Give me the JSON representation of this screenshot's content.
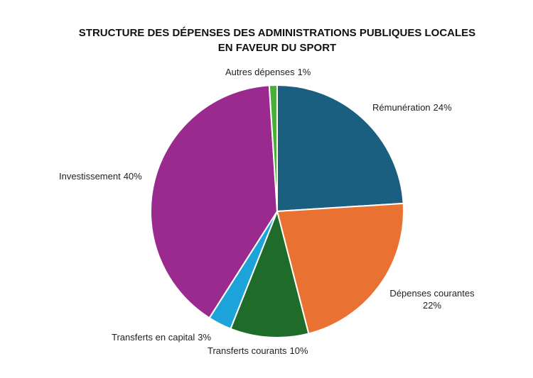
{
  "chart_data": {
    "type": "pie",
    "title": [
      "STRUCTURE DES DÉPENSES DES ADMINISTRATIONS PUBLIQUES LOCALES",
      "EN FAVEUR DU SPORT"
    ],
    "categories": [
      "Rémunération",
      "Dépenses courantes",
      "Transferts courants",
      "Transferts en capital",
      "Investissement",
      "Autres dépenses"
    ],
    "values": [
      24,
      22,
      10,
      3,
      40,
      1
    ],
    "value_labels": [
      "24%",
      "22%",
      "10%",
      "3%",
      "40%",
      "1%"
    ],
    "colors": [
      "#1b5f80",
      "#e97232",
      "#1f6b2a",
      "#1ca3da",
      "#9b2a8f",
      "#4bae3a"
    ]
  }
}
